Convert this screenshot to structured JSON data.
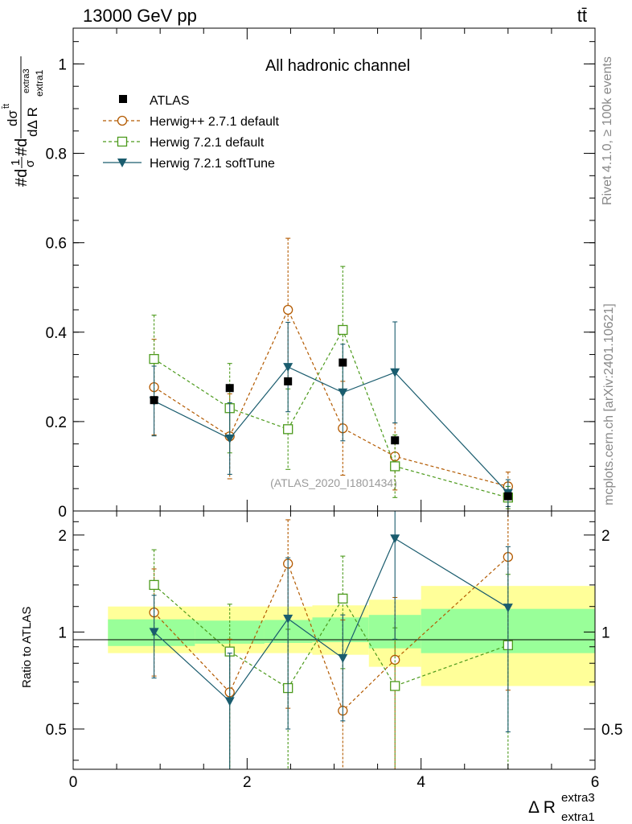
{
  "header": {
    "left": "13000 GeV pp",
    "right": "tt̄"
  },
  "side_labels": {
    "rivet": "Rivet 4.1.0, ≥ 100k events",
    "mcplots": "mcplots.cern.ch [arXiv:2401.10621]"
  },
  "chart_data": [
    {
      "panel": "main",
      "type": "scatter",
      "title": "All hadronic channel",
      "watermark": "(ATLAS_2020_I1801434)",
      "ylabel": "#d 1/σ #d dσ^{t̄t}/dΔ R_{extra1}^{extra3}",
      "ylabel_parts": {
        "a": "#d",
        "num1": "1",
        "den1": "σ",
        "b": "#d",
        "num2": "dσ",
        "num2_sup": "t̄t",
        "den2": "dΔ R",
        "den2_sub": "extra1",
        "den2_sup": "extra3"
      },
      "xlim": [
        0,
        6
      ],
      "ylim": [
        0,
        1.08
      ],
      "yticks": [
        "0",
        "0.2",
        "0.4",
        "0.6",
        "0.8",
        "1"
      ],
      "ytick_values": [
        0,
        0.2,
        0.4,
        0.6,
        0.8,
        1.0
      ],
      "legend_position": "top-left",
      "series": [
        {
          "name": "ATLAS",
          "color": "#000000",
          "marker": "filled-square",
          "line": "none",
          "x": [
            0.93,
            1.8,
            2.47,
            3.1,
            3.7,
            5.0
          ],
          "y": [
            0.248,
            0.275,
            0.29,
            0.332,
            0.158,
            0.033
          ],
          "err": [
            0.0,
            0.0,
            0.0,
            0.0,
            0.0,
            0.0
          ]
        },
        {
          "name": "Herwig++ 2.7.1 default",
          "color": "#b35a00",
          "marker": "open-circle",
          "line": "dashed",
          "x": [
            0.93,
            1.8,
            2.47,
            3.1,
            3.7,
            5.0
          ],
          "y": [
            0.277,
            0.167,
            0.45,
            0.185,
            0.122,
            0.055
          ],
          "err": [
            0.107,
            0.095,
            0.16,
            0.105,
            0.075,
            0.032
          ]
        },
        {
          "name": "Herwig 7.2.1 default",
          "color": "#4c9a1c",
          "marker": "open-square",
          "line": "dashed",
          "x": [
            0.93,
            1.8,
            2.47,
            3.1,
            3.7,
            5.0
          ],
          "y": [
            0.34,
            0.23,
            0.183,
            0.405,
            0.1,
            0.03
          ],
          "err": [
            0.098,
            0.1,
            0.09,
            0.142,
            0.07,
            0.025
          ]
        },
        {
          "name": "Herwig 7.2.1 softTune",
          "color": "#1a5c6e",
          "marker": "filled-triangle-down",
          "line": "solid",
          "x": [
            0.93,
            1.8,
            2.47,
            3.1,
            3.7,
            5.0
          ],
          "y": [
            0.246,
            0.162,
            0.322,
            0.265,
            0.31,
            0.04
          ],
          "err": [
            0.078,
            0.08,
            0.1,
            0.108,
            0.113,
            0.03
          ]
        }
      ]
    },
    {
      "panel": "ratio",
      "type": "scatter",
      "ylabel": "Ratio to ATLAS",
      "xlabel": "Δ R_{extra1}^{extra3}",
      "xlabel_parts": {
        "base": "Δ R",
        "sub": "extra1",
        "sup": "extra3"
      },
      "xlim": [
        0,
        6
      ],
      "ylim": [
        0.375,
        2.375
      ],
      "xticks": [
        "0",
        "2",
        "4",
        "6"
      ],
      "xtick_values": [
        0,
        2,
        4,
        6
      ],
      "yticks": [
        "0.5",
        "1",
        "2"
      ],
      "ytick_values": [
        0.5,
        1.0,
        2.0
      ],
      "bands": {
        "bin_edges": [
          0.4,
          1.4,
          2.2,
          2.75,
          3.4,
          4.0,
          6.0
        ],
        "inner_low": [
          0.905,
          0.92,
          0.925,
          0.93,
          0.89,
          0.86
        ],
        "inner_high": [
          1.095,
          1.085,
          1.09,
          1.11,
          1.13,
          1.18
        ],
        "outer_low": [
          0.86,
          0.86,
          0.86,
          0.85,
          0.78,
          0.68
        ],
        "outer_high": [
          1.2,
          1.2,
          1.2,
          1.21,
          1.26,
          1.39
        ],
        "inner_color": "#99ff99",
        "outer_color": "#ffff99"
      },
      "series": [
        {
          "name": "Herwig++ 2.7.1 default",
          "color": "#b35a00",
          "marker": "open-circle",
          "line": "dashed",
          "x": [
            0.93,
            1.8,
            2.47,
            3.1,
            3.7,
            5.0
          ],
          "y": [
            1.15,
            0.65,
            1.63,
            0.57,
            0.82,
            1.71
          ],
          "err_low": [
            0.42,
            0.3,
            1.05,
            0.35,
            0.46,
            1.05
          ],
          "err_high": [
            0.42,
            0.3,
            0.6,
            0.52,
            0.46,
            0.8
          ]
        },
        {
          "name": "Herwig 7.2.1 default",
          "color": "#4c9a1c",
          "marker": "open-square",
          "line": "dashed",
          "x": [
            0.93,
            1.8,
            2.47,
            3.1,
            3.7,
            5.0
          ],
          "y": [
            1.4,
            0.87,
            0.67,
            1.27,
            0.68,
            0.91
          ],
          "err_low": [
            0.42,
            0.55,
            0.5,
            0.5,
            0.5,
            0.6
          ],
          "err_high": [
            0.4,
            0.35,
            0.35,
            0.45,
            0.35,
            0.6
          ]
        },
        {
          "name": "Herwig 7.2.1 softTune",
          "color": "#1a5c6e",
          "marker": "filled-triangle-down",
          "line": "solid",
          "x": [
            0.93,
            1.8,
            2.47,
            3.1,
            3.7,
            5.0
          ],
          "y": [
            1.0,
            0.61,
            1.1,
            0.83,
            1.95,
            1.19
          ],
          "err_low": [
            0.28,
            0.25,
            0.6,
            0.3,
            1.0,
            0.7
          ],
          "err_high": [
            0.3,
            0.25,
            0.6,
            0.3,
            1.0,
            0.65
          ]
        }
      ]
    }
  ]
}
